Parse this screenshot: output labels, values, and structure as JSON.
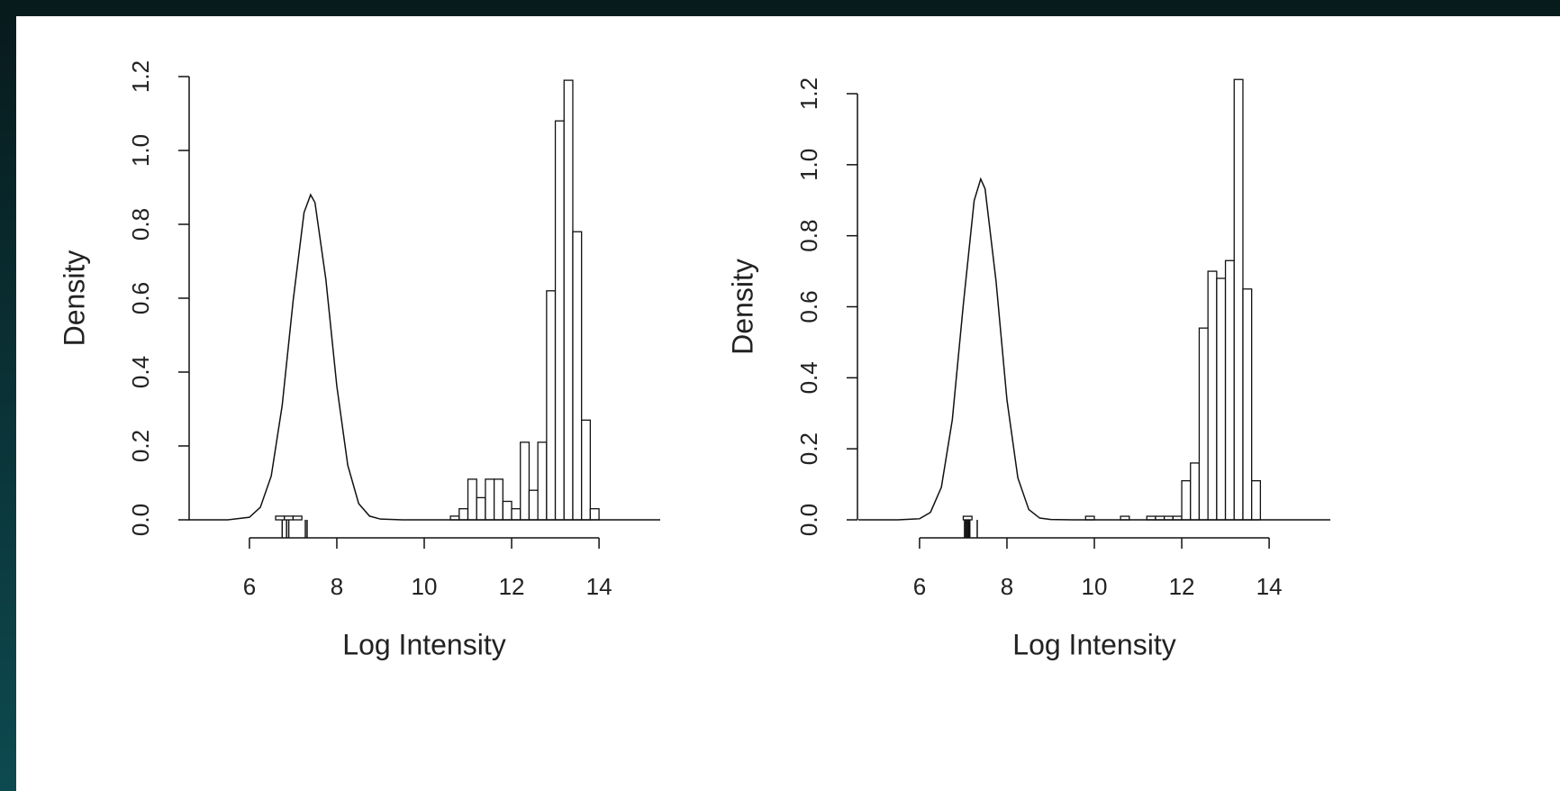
{
  "chart_data": [
    {
      "type": "histogram",
      "xlabel": "Log Intensity",
      "ylabel": "Density",
      "bins": [
        6.6,
        6.8,
        7,
        7.2,
        7.4,
        7.6,
        7.8,
        8,
        8.2,
        8.4,
        8.6,
        8.8,
        9,
        9.2,
        9.4,
        9.6,
        9.8,
        10,
        10.2,
        10.4,
        10.6,
        10.8,
        11,
        11.2,
        11.4,
        11.6,
        11.8,
        12,
        12.2,
        12.4,
        12.6,
        12.8,
        13,
        13.2,
        13.4,
        13.6,
        13.8,
        14
      ],
      "values": [
        0.01,
        0.01,
        0.01,
        0,
        0,
        0,
        0,
        0,
        0,
        0,
        0,
        0,
        0,
        0,
        0,
        0,
        0,
        0,
        0,
        0,
        0.01,
        0.03,
        0.11,
        0.06,
        0.11,
        0.11,
        0.05,
        0.03,
        0.21,
        0.08,
        0.21,
        0.62,
        1.08,
        1.19,
        0.78,
        0.27,
        0.03
      ],
      "curve": {
        "x": [
          4.6,
          5,
          5.5,
          6,
          6.25,
          6.5,
          6.75,
          7,
          7.25,
          7.4,
          7.5,
          7.75,
          8,
          8.25,
          8.5,
          8.75,
          9,
          9.5,
          15.4
        ],
        "values": [
          0,
          0,
          0,
          0.007,
          0.034,
          0.119,
          0.31,
          0.593,
          0.832,
          0.88,
          0.859,
          0.65,
          0.362,
          0.148,
          0.044,
          0.01,
          0.002,
          0,
          0
        ]
      },
      "rug": [
        6.75,
        6.85,
        6.9,
        7.28,
        7.32
      ],
      "xlim": [
        4.6,
        15.4
      ],
      "xticks": [
        6,
        8,
        10,
        12,
        14
      ],
      "ylim": [
        0,
        1.2
      ],
      "yticks": [
        {
          "value": 0,
          "label": "0.0"
        },
        {
          "value": 0.2,
          "label": "0.2"
        },
        {
          "value": 0.4,
          "label": "0.4"
        },
        {
          "value": 0.6,
          "label": "0.6"
        },
        {
          "value": 0.8,
          "label": "0.8"
        },
        {
          "value": 1,
          "label": "1.0"
        },
        {
          "value": 1.2,
          "label": "1.2"
        }
      ]
    },
    {
      "type": "histogram",
      "xlabel": "Log Intensity",
      "ylabel": "Density",
      "bins": [
        7,
        7.2,
        7.4,
        7.6,
        7.8,
        8,
        8.2,
        8.4,
        8.6,
        8.8,
        9,
        9.2,
        9.4,
        9.6,
        9.8,
        10,
        10.2,
        10.4,
        10.6,
        10.8,
        11,
        11.2,
        11.4,
        11.6,
        11.8,
        12,
        12.2,
        12.4,
        12.6,
        12.8,
        13,
        13.2,
        13.4,
        13.6,
        13.8
      ],
      "values": [
        0.01,
        0,
        0,
        0,
        0,
        0,
        0,
        0,
        0,
        0,
        0,
        0,
        0,
        0,
        0.01,
        0,
        0,
        0,
        0.01,
        0,
        0,
        0.01,
        0.01,
        0.01,
        0.01,
        0.11,
        0.16,
        0.54,
        0.7,
        0.68,
        0.73,
        1.24,
        0.65,
        0.11
      ],
      "curve": {
        "x": [
          4.6,
          5,
          5.5,
          6,
          6.25,
          6.5,
          6.75,
          7,
          7.25,
          7.4,
          7.5,
          7.75,
          8,
          8.25,
          8.5,
          8.75,
          9,
          9.5,
          15.4
        ],
        "values": [
          0,
          0,
          0,
          0.003,
          0.021,
          0.092,
          0.282,
          0.604,
          0.899,
          0.96,
          0.932,
          0.673,
          0.338,
          0.118,
          0.029,
          0.005,
          0.001,
          0,
          0
        ]
      },
      "rug": [
        7.03,
        7.06,
        7.09,
        7.12,
        7.15,
        7.32
      ],
      "xlim": [
        4.6,
        15.4
      ],
      "xticks": [
        6,
        8,
        10,
        12,
        14
      ],
      "ylim": [
        0,
        1.2
      ],
      "yticks": [
        {
          "value": 0,
          "label": "0.0"
        },
        {
          "value": 0.2,
          "label": "0.2"
        },
        {
          "value": 0.4,
          "label": "0.4"
        },
        {
          "value": 0.6,
          "label": "0.6"
        },
        {
          "value": 0.8,
          "label": "0.8"
        },
        {
          "value": 1,
          "label": "1.0"
        },
        {
          "value": 1.2,
          "label": "1.2"
        }
      ]
    }
  ]
}
